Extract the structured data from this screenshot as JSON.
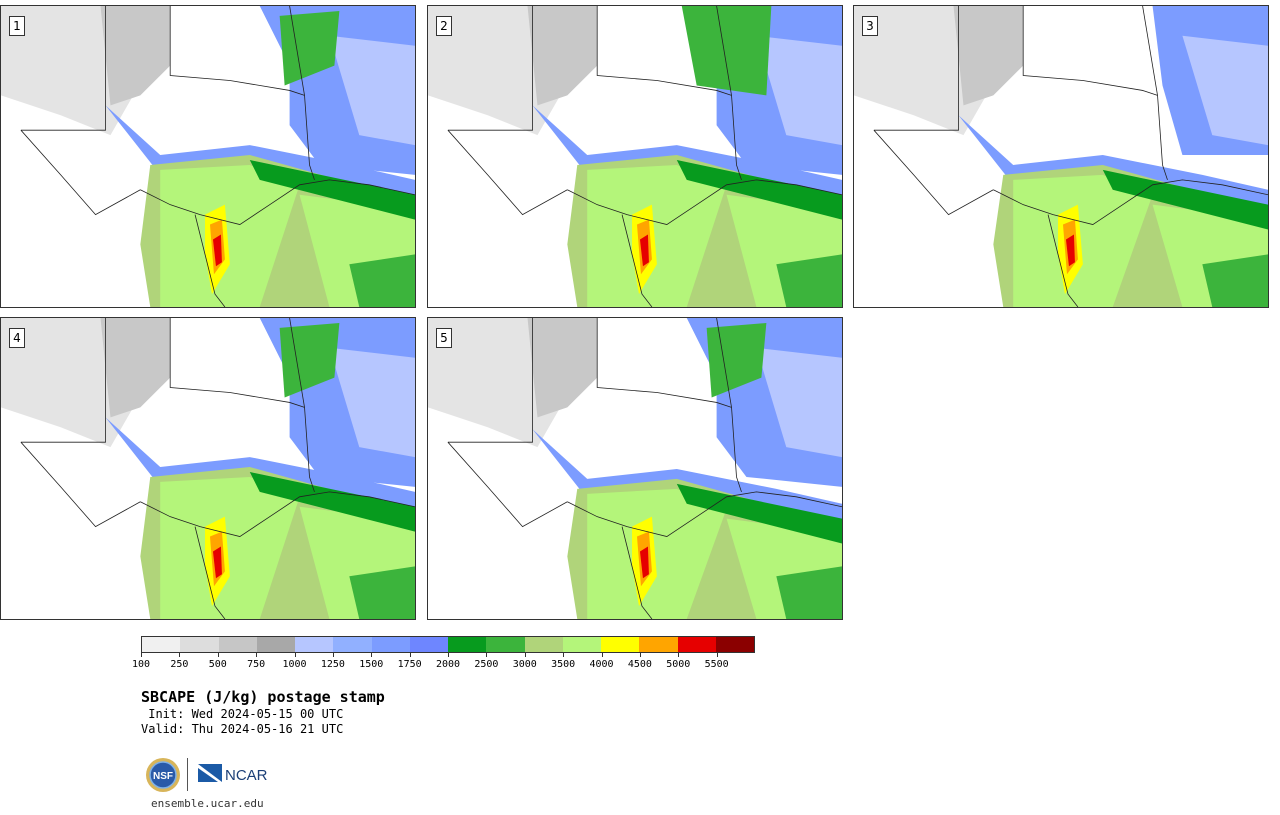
{
  "product": {
    "title": "SBCAPE (J/kg) postage stamp",
    "init": " Init: Wed 2024-05-15 00 UTC",
    "valid": "Valid: Thu 2024-05-16 21 UTC",
    "url": "ensemble.ucar.edu",
    "logo_nsf": "NSF",
    "logo_ncar": "NCAR"
  },
  "panels": [
    {
      "label": "1",
      "pattern": "a"
    },
    {
      "label": "2",
      "pattern": "b"
    },
    {
      "label": "3",
      "pattern": "c"
    },
    {
      "label": "4",
      "pattern": "a"
    },
    {
      "label": "5",
      "pattern": "d"
    }
  ],
  "colorbar": {
    "ticks": [
      "100",
      "250",
      "500",
      "750",
      "1000",
      "1250",
      "1500",
      "1750",
      "2000",
      "2500",
      "3000",
      "3500",
      "4000",
      "4500",
      "5000",
      "5500"
    ],
    "colors": [
      "#f0f0f0",
      "#dddddd",
      "#c6c6c6",
      "#a8a8a8",
      "#b6c6ff",
      "#91b0ff",
      "#7c9cff",
      "#6e86ff",
      "#079b1e",
      "#3cb43c",
      "#b0d47a",
      "#b4f57a",
      "#ffff00",
      "#ffa500",
      "#e60000",
      "#8b0000"
    ]
  },
  "colors": {
    "cape_low": "#b4f57a",
    "cape_mid": "#b0d47a",
    "cape_green": "#3cb43c",
    "cape_dark_green": "#079b1e",
    "cape_yellow": "#ffff00",
    "cape_orange": "#ffa500",
    "cape_red": "#e60000",
    "blue": "#7c9cff",
    "light_blue": "#b6c6ff",
    "grey": "#c6c6c6"
  }
}
